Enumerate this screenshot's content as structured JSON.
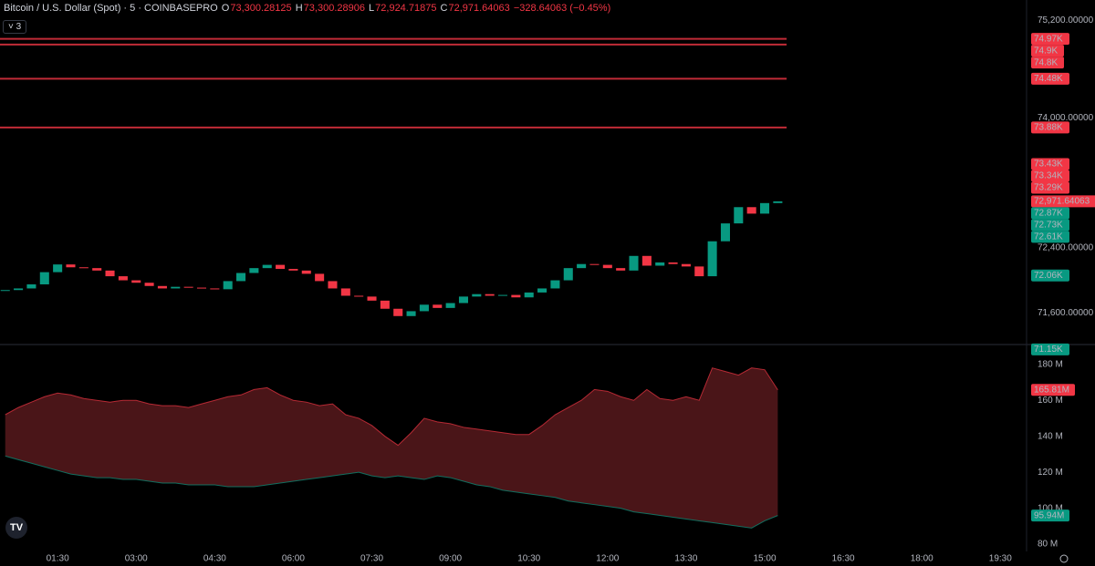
{
  "header": {
    "symbol": "Bitcoin / U.S. Dollar (Spot) · 5 · COINBASEPRO",
    "o_label": "O",
    "o": "73,300.28125",
    "h_label": "H",
    "h": "73,300.28906",
    "l_label": "L",
    "l": "72,924.71875",
    "c_label": "C",
    "c": "72,971.64063",
    "change": "−328.64063 (−0.45%)",
    "indicators": "3"
  },
  "chart_data": [
    {
      "type": "candlestick",
      "up_color": "#089981",
      "down_color": "#f23645",
      "x": [
        30,
        45,
        60,
        75,
        90,
        105,
        120,
        135,
        150,
        165,
        180,
        195,
        210,
        225,
        240,
        255,
        270,
        285,
        300,
        315,
        330,
        345,
        360,
        375,
        390,
        405,
        420,
        435,
        450,
        465,
        480,
        495,
        510,
        525,
        540,
        555,
        570,
        585,
        600,
        615,
        630,
        645,
        660,
        675,
        690,
        705,
        720,
        735,
        750,
        765,
        780,
        795,
        810,
        825,
        840,
        855,
        870,
        885,
        900,
        915
      ],
      "close": [
        71880,
        71900,
        71950,
        72100,
        72195,
        72160,
        72150,
        72120,
        72050,
        72000,
        71970,
        71930,
        71900,
        71920,
        71910,
        71900,
        71890,
        71990,
        72090,
        72150,
        72190,
        72140,
        72120,
        72080,
        71990,
        71900,
        71810,
        71800,
        71750,
        71650,
        71560,
        71620,
        71700,
        71660,
        71720,
        71800,
        71830,
        71810,
        71820,
        71790,
        71850,
        71900,
        72000,
        72150,
        72200,
        72190,
        72150,
        72120,
        72300,
        72180,
        72220,
        72200,
        72170,
        72050,
        72480,
        72700,
        72900,
        72820,
        72950,
        72971.64063
      ],
      "xlim": [
        24,
        1200
      ],
      "xticks": [
        {
          "value": 90,
          "label": "01:30"
        },
        {
          "value": 180,
          "label": "03:00"
        },
        {
          "value": 270,
          "label": "04:30"
        },
        {
          "value": 360,
          "label": "06:00"
        },
        {
          "value": 450,
          "label": "07:30"
        },
        {
          "value": 540,
          "label": "09:00"
        },
        {
          "value": 630,
          "label": "10:30"
        },
        {
          "value": 720,
          "label": "12:00"
        },
        {
          "value": 810,
          "label": "13:30"
        },
        {
          "value": 900,
          "label": "15:00"
        },
        {
          "value": 990,
          "label": "16:30"
        },
        {
          "value": 1080,
          "label": "18:00"
        },
        {
          "value": 1170,
          "label": "19:30"
        }
      ],
      "ylim": [
        71210,
        75280
      ],
      "yticks": [
        {
          "value": 75200,
          "label": "75,200.00000"
        },
        {
          "value": 74000,
          "label": "74,000.00000"
        },
        {
          "value": 72400,
          "label": "72,400.00000"
        },
        {
          "value": 71600,
          "label": "71,600.00000"
        }
      ],
      "tags": [
        {
          "value": 74970,
          "label": "74.97K",
          "color": "#f23645",
          "line": true
        },
        {
          "value": 74900,
          "label": "74.9K",
          "color": "#f23645",
          "line": true
        },
        {
          "value": 74800,
          "label": "74.8K",
          "color": "#f23645"
        },
        {
          "value": 74480,
          "label": "74.48K",
          "color": "#f23645",
          "line": true
        },
        {
          "value": 73880,
          "label": "73.88K",
          "color": "#f23645",
          "line": true
        },
        {
          "value": 73430,
          "label": "73.43K",
          "color": "#f23645"
        },
        {
          "value": 73340,
          "label": "73.34K",
          "color": "#f23645"
        },
        {
          "value": 73290,
          "label": "73.29K",
          "color": "#f23645"
        },
        {
          "value": 72971.64063,
          "label": "72,971.64063",
          "color": "#f23645"
        },
        {
          "value": 72870,
          "label": "72.87K",
          "color": "#089981"
        },
        {
          "value": 72730,
          "label": "72.73K",
          "color": "#089981"
        },
        {
          "value": 72610,
          "label": "72.61K",
          "color": "#089981"
        },
        {
          "value": 72060,
          "label": "72.06K",
          "color": "#089981"
        },
        {
          "value": 71150,
          "label": "71.15K",
          "color": "#089981"
        }
      ]
    },
    {
      "type": "band",
      "fill": "#4a1518",
      "x": [
        30,
        45,
        60,
        75,
        90,
        105,
        120,
        135,
        150,
        165,
        180,
        195,
        210,
        225,
        240,
        255,
        270,
        285,
        300,
        315,
        330,
        345,
        360,
        375,
        390,
        405,
        420,
        435,
        450,
        465,
        480,
        495,
        510,
        525,
        540,
        555,
        570,
        585,
        600,
        615,
        630,
        645,
        660,
        675,
        690,
        705,
        720,
        735,
        750,
        765,
        780,
        795,
        810,
        825,
        840,
        855,
        870,
        885,
        900,
        915
      ],
      "series": [
        {
          "color": "#f23645",
          "values": [
            152,
            156,
            159,
            162,
            164,
            163,
            161,
            160,
            159,
            160,
            160,
            158,
            157,
            157,
            156,
            158,
            160,
            162,
            163,
            166,
            167,
            163,
            160,
            159,
            157,
            158,
            152,
            150,
            146,
            140,
            135,
            142,
            150,
            148,
            147,
            145,
            144,
            143,
            142,
            141,
            141,
            146,
            152,
            156,
            160,
            166,
            165,
            162,
            160,
            166,
            161,
            160,
            162,
            160,
            178,
            176,
            174,
            178,
            177,
            165.81
          ]
        },
        {
          "color": "#089981",
          "values": [
            129,
            127,
            125,
            123,
            121,
            119,
            118,
            117,
            117,
            116,
            116,
            115,
            114,
            114,
            113,
            113,
            113,
            112,
            112,
            112,
            113,
            114,
            115,
            116,
            117,
            118,
            119,
            120,
            118,
            117,
            118,
            117,
            116,
            118,
            117,
            115,
            113,
            112,
            110,
            109,
            108,
            107,
            106,
            104,
            103,
            102,
            101,
            100,
            98,
            97,
            96,
            95,
            94,
            93,
            92,
            91,
            90,
            89,
            93,
            95.94
          ]
        }
      ],
      "ylim": [
        76,
        190
      ],
      "yticks": [
        {
          "value": 180,
          "label": "180 M"
        },
        {
          "value": 160,
          "label": "160 M"
        },
        {
          "value": 140,
          "label": "140 M"
        },
        {
          "value": 120,
          "label": "120 M"
        },
        {
          "value": 100,
          "label": "100 M"
        },
        {
          "value": 80,
          "label": "80 M"
        }
      ],
      "tags": [
        {
          "value": 165.81,
          "label": "165.81M",
          "color": "#f23645"
        },
        {
          "value": 95.94,
          "label": "95.94M",
          "color": "#089981"
        }
      ]
    }
  ]
}
